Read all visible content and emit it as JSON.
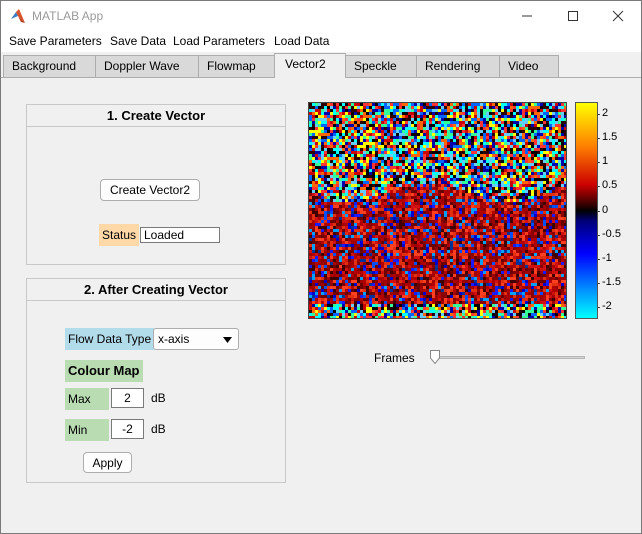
{
  "window": {
    "title": "MATLAB App"
  },
  "menu": [
    "Save Parameters",
    "Save Data",
    "Load Parameters",
    "Load Data"
  ],
  "tabs": [
    "Background",
    "Doppler Wave",
    "Flowmap",
    "Vector2",
    "Speckle",
    "Rendering",
    "Video"
  ],
  "active_tab": "Vector2",
  "create_panel": {
    "title": "1. Create Vector",
    "button": "Create Vector2",
    "status_label": "Status",
    "status_value": "Loaded"
  },
  "after_panel": {
    "title": "2. After Creating Vector",
    "flow_type_label": "Flow Data Type",
    "flow_type_value": "x-axis",
    "colour_map_label": "Colour Map",
    "max_label": "Max",
    "max_value": "2",
    "min_label": "Min",
    "min_value": "-2",
    "unit": "dB",
    "apply_button": "Apply"
  },
  "colorbar": {
    "ticks": [
      "2",
      "1.5",
      "1",
      "0.5",
      "0",
      "-0.5",
      "-1",
      "-1.5",
      "-2"
    ],
    "max": 2.25,
    "min": -2.25
  },
  "frames": {
    "label": "Frames",
    "position": 0.0
  },
  "colors": {
    "status_bg": "#ffd8a8",
    "flow_bg": "#b3dceb",
    "green_bg": "#b9dcb2"
  },
  "icons": [
    "matlab-logo-icon",
    "minimize-icon",
    "maximize-icon",
    "close-icon",
    "dropdown-arrow-icon"
  ]
}
